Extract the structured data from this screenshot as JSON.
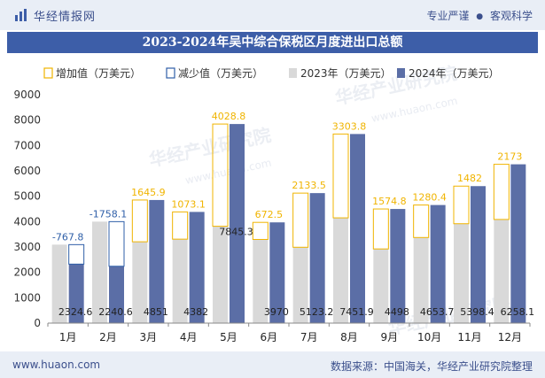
{
  "header": {
    "brand": "华经情报网",
    "slogan_left": "专业严谨",
    "slogan_dot": "●",
    "slogan_right": "客观科学"
  },
  "title": "2023-2024年吴中综合保税区月度进出口总额",
  "footer": {
    "url": "www.huaon.com",
    "source": "数据来源：中国海关，华经产业研究院整理"
  },
  "watermark": {
    "cn": "华经产业研究院",
    "url": "www.huaon.com"
  },
  "colors": {
    "brand": "#3d5ea8",
    "bar_2023": "#d9d9d9",
    "bar_2024": "#5b6ea6",
    "increase": "#f0b400",
    "decrease": "#2f5fa8"
  },
  "chart_data": {
    "type": "bar",
    "categories": [
      "1月",
      "2月",
      "3月",
      "4月",
      "5月",
      "6月",
      "7月",
      "8月",
      "9月",
      "10月",
      "11月",
      "12月"
    ],
    "series": [
      {
        "name": "2023年（万美元）",
        "values": [
          3092.4,
          3998.7,
          3205.1,
          3308.9,
          3816.5,
          3297.5,
          2989.7,
          4148.1,
          2923.2,
          3373.4,
          3916.4,
          4085.1
        ]
      },
      {
        "name": "2024年（万美元）",
        "values": [
          2324.6,
          2240.6,
          4851,
          4382,
          7845.3,
          3970,
          5123.2,
          7451.9,
          4498,
          4653.7,
          5398.4,
          6258.1
        ]
      }
    ],
    "change_series": [
      {
        "name": "增加值（万美元）",
        "kind": "increase"
      },
      {
        "name": "减少值（万美元）",
        "kind": "decrease"
      }
    ],
    "change_labels": [
      "-767.8",
      "-1758.1",
      "1645.9",
      "1073.1",
      "4028.8",
      "672.5",
      "2133.5",
      "3303.8",
      "1574.8",
      "1280.4",
      "1482",
      "2173"
    ],
    "value_labels_2024": [
      "2324.6",
      "2240.6",
      "4851",
      "4382",
      "7845.3",
      "3970",
      "5123.2",
      "7451.9",
      "4498",
      "4653.7",
      "5398.4",
      "6258.1"
    ],
    "ylim": [
      0,
      9000
    ],
    "yticks": [
      0,
      1000,
      2000,
      3000,
      4000,
      5000,
      6000,
      7000,
      8000,
      9000
    ],
    "xlabel": "",
    "ylabel": "",
    "legend_position": "top",
    "grid": false
  }
}
